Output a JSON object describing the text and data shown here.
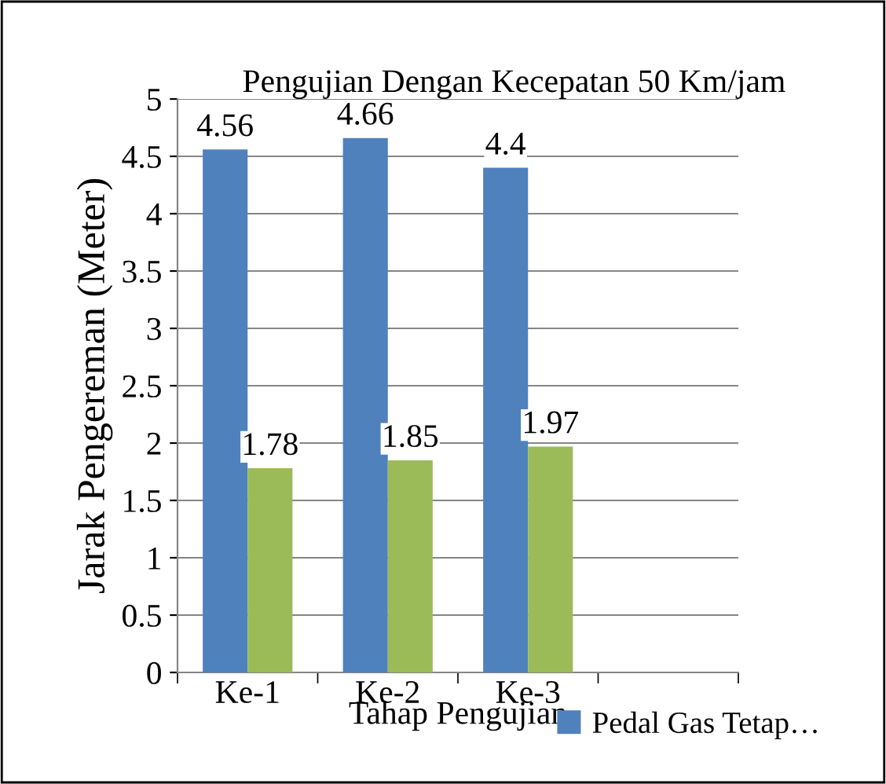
{
  "chart_data": {
    "type": "bar",
    "title": "Pengujian Dengan Kecepatan 50 Km/jam",
    "xlabel": "Tahap Pengujian",
    "ylabel": "Jarak Pengereman (Meter)",
    "categories": [
      "Ke-1",
      "Ke-2",
      "Ke-3",
      null
    ],
    "series": [
      {
        "name": "Pedal Gas Tetap…",
        "color": "#4f81bd",
        "values": [
          4.56,
          4.66,
          4.4,
          null
        ]
      },
      {
        "color": "#9bbb59",
        "values": [
          1.78,
          1.85,
          1.97,
          null
        ]
      }
    ],
    "ylim": [
      0,
      5
    ],
    "yticks": [
      0,
      0.5,
      1,
      1.5,
      2,
      2.5,
      3,
      3.5,
      4,
      4.5,
      5
    ],
    "grid": "y",
    "data_labels": true,
    "legend": "bottom right"
  }
}
